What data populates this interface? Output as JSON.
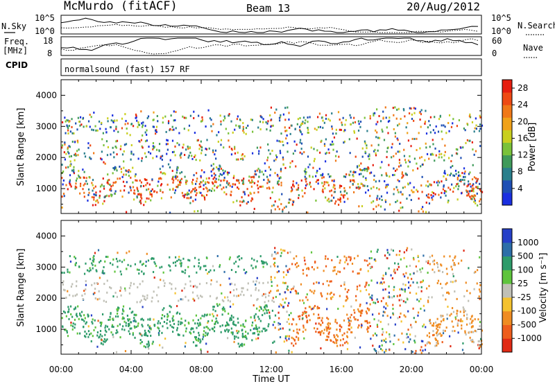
{
  "header": {
    "station": "McMurdo (fitACF)",
    "beam": "Beam 13",
    "date": "20/Aug/2012",
    "cpid_label": "CPID",
    "cpid_value": "normalsound (fast) 157 RF"
  },
  "chart_data": [
    {
      "type": "line",
      "left_label": "N.Sky",
      "right_label": "N.Search",
      "left_ticks": [
        "10^5",
        "10^0"
      ],
      "right_ticks": [
        "10^5",
        "10^0"
      ],
      "series": [
        {
          "name": "N.Sky",
          "style": "solid"
        },
        {
          "name": "N.Search",
          "style": "dotted"
        }
      ]
    },
    {
      "type": "line",
      "left_label_lines": [
        "Freq.",
        "[MHz]"
      ],
      "right_label": "Nave",
      "left_ticks": [
        "18",
        "8"
      ],
      "right_ticks": [
        "60",
        "0"
      ],
      "left_range": [
        8,
        18
      ],
      "right_range": [
        0,
        60
      ],
      "series": [
        {
          "name": "Freq.",
          "style": "solid"
        },
        {
          "name": "Nave",
          "style": "dotted"
        }
      ]
    },
    {
      "type": "heatmap",
      "ylabel": "Slant Range [km]",
      "yticks": [
        "1000",
        "2000",
        "3000",
        "4000"
      ],
      "yrange": [
        200,
        4500
      ],
      "xrange_hours": [
        0,
        24
      ],
      "colorbar": {
        "label": "Power [dB]",
        "ticks": [
          "4",
          "8",
          "12",
          "16",
          "20",
          "24",
          "28"
        ],
        "range": [
          0,
          30
        ],
        "colors": [
          "#1a2fe0",
          "#1e4fb4",
          "#2a7f8c",
          "#3f9a5a",
          "#7ac23a",
          "#c9cf1f",
          "#f0a21a",
          "#f07818",
          "#ee4a14",
          "#e61e10"
        ]
      }
    },
    {
      "type": "heatmap",
      "ylabel": "Slant Range [km]",
      "xlabel": "Time UT",
      "yticks": [
        "1000",
        "2000",
        "3000",
        "4000"
      ],
      "xticks": [
        "00:00",
        "04:00",
        "08:00",
        "12:00",
        "16:00",
        "20:00",
        "00:00"
      ],
      "yrange": [
        200,
        4500
      ],
      "xrange_hours": [
        0,
        24
      ],
      "colorbar": {
        "label": "Velocity [m s⁻¹]",
        "ticks": [
          "1000",
          "500",
          "100",
          "25",
          "-25",
          "-100",
          "-500",
          "-1000"
        ],
        "colors": [
          "#2640c8",
          "#2d6ea8",
          "#2e9b6a",
          "#5ec43c",
          "#c0c0b6",
          "#f4c22e",
          "#ef8c22",
          "#ee5d1c",
          "#e02a14"
        ]
      }
    }
  ]
}
